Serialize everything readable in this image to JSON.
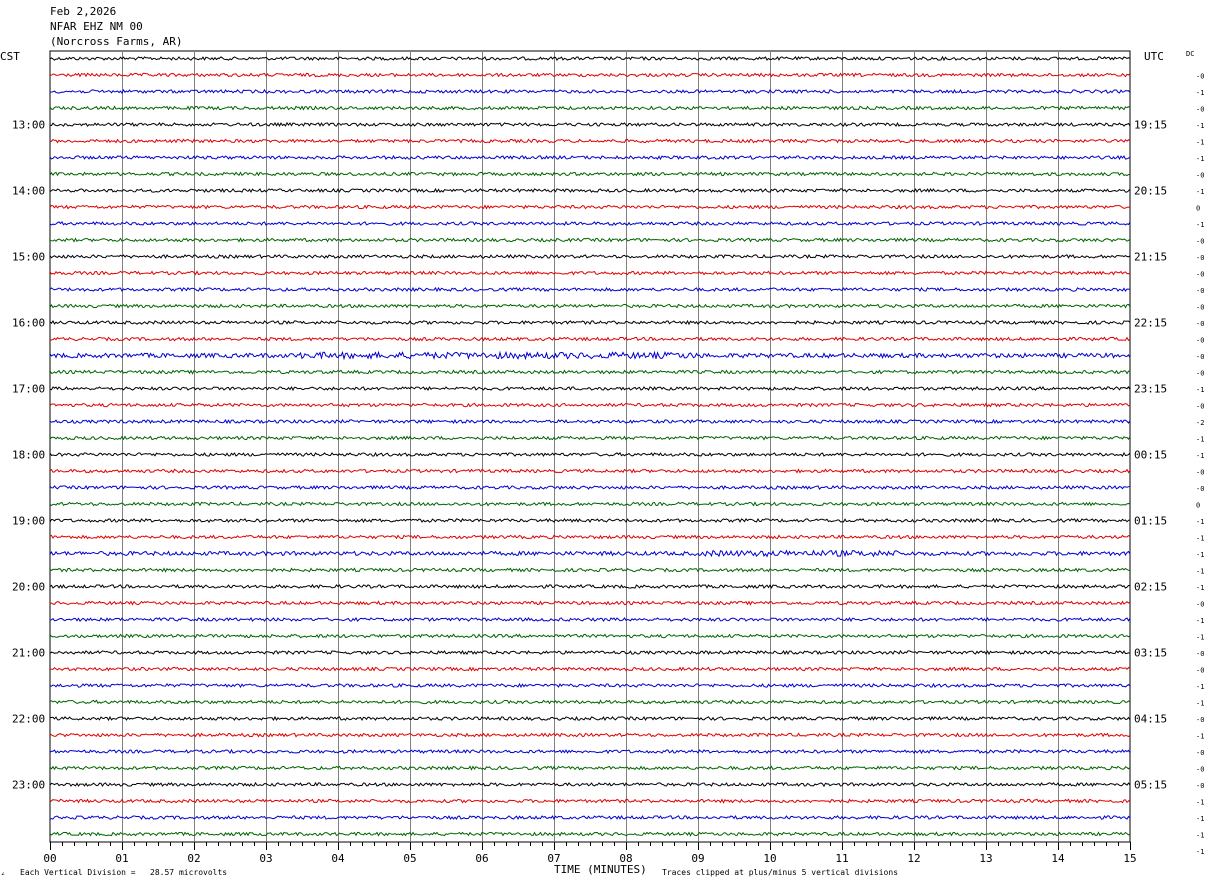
{
  "header": {
    "date": "Feb 2,2026",
    "station": "NFAR EHZ NM 00",
    "location": "(Norcross Farms, AR)"
  },
  "left_tz": "CST",
  "right_tz": "UTC",
  "dc_label": "DC",
  "footer": {
    "scale_note": "Each Vertical Division =   28.57 microvolts",
    "clip_note": "Traces clipped at plus/minus 5 vertical divisions",
    "corner_mark": "∠"
  },
  "colors": {
    "black": "#000000",
    "red": "#e00000",
    "blue": "#0000d0",
    "green": "#006400",
    "grid": "#808080"
  },
  "chart_data": {
    "type": "line",
    "title": "",
    "xlabel": "TIME (MINUTES)",
    "ylabel": "",
    "xlim": [
      0,
      15
    ],
    "x_ticks": [
      "00",
      "01",
      "02",
      "03",
      "04",
      "05",
      "06",
      "07",
      "08",
      "09",
      "10",
      "11",
      "12",
      "13",
      "14",
      "15"
    ],
    "trace_count": 48,
    "traces_per_hour": 4,
    "trace_colors": [
      "black",
      "red",
      "blue",
      "green"
    ],
    "left_hour_labels": [
      "13:00",
      "14:00",
      "15:00",
      "16:00",
      "17:00",
      "18:00",
      "19:00",
      "20:00",
      "21:00",
      "22:00",
      "23:00"
    ],
    "right_hour_labels": [
      "19:15",
      "20:15",
      "21:15",
      "22:15",
      "23:15",
      "00:15",
      "01:15",
      "02:15",
      "03:15",
      "04:15",
      "05:15"
    ],
    "dc_offsets": [
      "-0",
      "-1",
      "-0",
      "-1",
      "-1",
      "-1",
      "-0",
      "-1",
      "0",
      "-1",
      "-0",
      "-0",
      "-0",
      "-0",
      "-0",
      "-0",
      "-0",
      "-0",
      "-0",
      "-1",
      "-0",
      "-2",
      "-1",
      "-1",
      "-0",
      "-0",
      "0",
      "-1",
      "-1",
      "-1",
      "-1",
      "-1",
      "-0",
      "-1",
      "-1",
      "-0",
      "-0",
      "-1",
      "-1",
      "-0",
      "-1",
      "-0",
      "-0",
      "-0",
      "-1",
      "-1",
      "-1",
      "-1"
    ]
  }
}
